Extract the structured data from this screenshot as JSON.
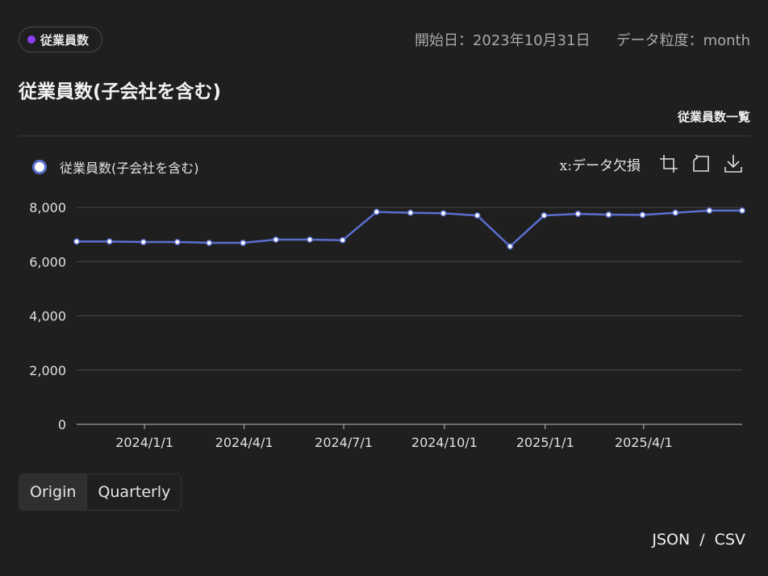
{
  "header": {
    "badge_label": "従業員数",
    "badge_color": "#8a3ff0",
    "start_date": "開始日：2023年10月31日",
    "granularity": "データ粒度：month"
  },
  "title": "従業員数(子会社を含む)",
  "list_link": "従業員数一覧",
  "toolbar": {
    "missing_label": "x:データ欠損",
    "icons": [
      "crop-icon",
      "reset-icon",
      "download-icon"
    ]
  },
  "segments": {
    "origin": "Origin",
    "quarterly": "Quarterly"
  },
  "export": {
    "json": "JSON",
    "separator": "/",
    "csv": "CSV"
  },
  "colors": {
    "line": "#5b6fd0",
    "grid": "#4a4a4a",
    "axis_text": "#e0e0e0"
  },
  "chart_data": {
    "type": "line",
    "title": "",
    "xlabel": "",
    "ylabel": "",
    "ylim": [
      0,
      8000
    ],
    "yticks": [
      "0",
      "2,000",
      "4,000",
      "6,000",
      "8,000"
    ],
    "ytick_values": [
      0,
      2000,
      4000,
      6000,
      8000
    ],
    "xtick_labels": [
      "2024/1/1",
      "2024/4/1",
      "2024/7/1",
      "2024/10/1",
      "2025/1/1",
      "2025/4/1"
    ],
    "xtick_dates": [
      "2024-01-01",
      "2024-04-01",
      "2024-07-01",
      "2024-10-01",
      "2025-01-01",
      "2025-04-01"
    ],
    "x_range": [
      "2023-10-31",
      "2025-06-30"
    ],
    "legend": "top-left",
    "series": [
      {
        "name": "従業員数(子会社を含む)",
        "x": [
          "2023-10-31",
          "2023-11-30",
          "2023-12-31",
          "2024-01-31",
          "2024-02-29",
          "2024-03-31",
          "2024-04-30",
          "2024-05-31",
          "2024-06-30",
          "2024-07-31",
          "2024-08-31",
          "2024-09-30",
          "2024-10-31",
          "2024-11-30",
          "2024-12-31",
          "2025-01-31",
          "2025-02-28",
          "2025-03-31",
          "2025-04-30",
          "2025-05-31",
          "2025-06-30"
        ],
        "values": [
          6740,
          6740,
          6720,
          6720,
          6690,
          6690,
          6810,
          6810,
          6790,
          7830,
          7800,
          7780,
          7700,
          6560,
          7700,
          7760,
          7730,
          7720,
          7800,
          7880,
          7880
        ]
      }
    ]
  }
}
